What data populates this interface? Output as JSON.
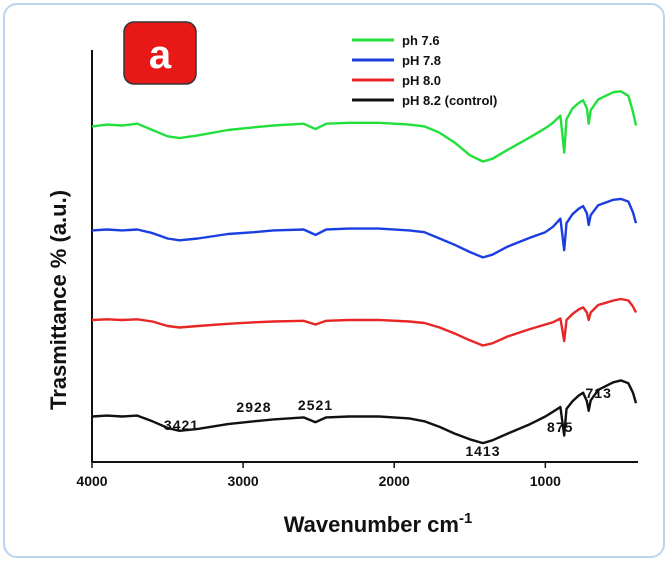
{
  "chart_data": {
    "type": "line",
    "panel_label": "a",
    "xlabel": "Wavenumber cm",
    "xlabel_superscript": "-1",
    "ylabel": "Trasmittance % (a.u.)",
    "xlim": [
      4000,
      400
    ],
    "x_reversed": true,
    "x_ticks": [
      4000,
      3000,
      2000,
      1000
    ],
    "y_ticks_shown": false,
    "grid": false,
    "legend_position": "top-right",
    "series": [
      {
        "name": "ph 7.6",
        "color": "#22e03c",
        "points": [
          [
            4000,
            0.54
          ],
          [
            3900,
            0.56
          ],
          [
            3800,
            0.55
          ],
          [
            3700,
            0.57
          ],
          [
            3600,
            0.5
          ],
          [
            3500,
            0.43
          ],
          [
            3421,
            0.41
          ],
          [
            3300,
            0.44
          ],
          [
            3100,
            0.5
          ],
          [
            2928,
            0.53
          ],
          [
            2800,
            0.55
          ],
          [
            2600,
            0.57
          ],
          [
            2521,
            0.51
          ],
          [
            2450,
            0.57
          ],
          [
            2300,
            0.58
          ],
          [
            2100,
            0.58
          ],
          [
            1900,
            0.56
          ],
          [
            1800,
            0.54
          ],
          [
            1700,
            0.47
          ],
          [
            1600,
            0.36
          ],
          [
            1500,
            0.22
          ],
          [
            1413,
            0.15
          ],
          [
            1350,
            0.18
          ],
          [
            1250,
            0.28
          ],
          [
            1100,
            0.42
          ],
          [
            1000,
            0.52
          ],
          [
            950,
            0.58
          ],
          [
            900,
            0.66
          ],
          [
            875,
            0.25
          ],
          [
            860,
            0.62
          ],
          [
            820,
            0.74
          ],
          [
            780,
            0.8
          ],
          [
            750,
            0.83
          ],
          [
            725,
            0.74
          ],
          [
            713,
            0.57
          ],
          [
            700,
            0.72
          ],
          [
            650,
            0.84
          ],
          [
            600,
            0.88
          ],
          [
            550,
            0.92
          ],
          [
            500,
            0.93
          ],
          [
            450,
            0.88
          ],
          [
            420,
            0.7
          ],
          [
            400,
            0.55
          ]
        ]
      },
      {
        "name": "pH 7.8",
        "color": "#1a3ee0",
        "points": [
          [
            4000,
            0.44
          ],
          [
            3900,
            0.45
          ],
          [
            3800,
            0.44
          ],
          [
            3700,
            0.45
          ],
          [
            3600,
            0.41
          ],
          [
            3500,
            0.35
          ],
          [
            3421,
            0.33
          ],
          [
            3300,
            0.35
          ],
          [
            3100,
            0.4
          ],
          [
            2928,
            0.42
          ],
          [
            2800,
            0.44
          ],
          [
            2600,
            0.45
          ],
          [
            2521,
            0.39
          ],
          [
            2450,
            0.45
          ],
          [
            2300,
            0.46
          ],
          [
            2100,
            0.46
          ],
          [
            1900,
            0.44
          ],
          [
            1800,
            0.42
          ],
          [
            1700,
            0.35
          ],
          [
            1600,
            0.28
          ],
          [
            1500,
            0.2
          ],
          [
            1413,
            0.14
          ],
          [
            1350,
            0.17
          ],
          [
            1250,
            0.26
          ],
          [
            1100,
            0.36
          ],
          [
            1000,
            0.42
          ],
          [
            950,
            0.48
          ],
          [
            900,
            0.57
          ],
          [
            875,
            0.22
          ],
          [
            860,
            0.52
          ],
          [
            820,
            0.62
          ],
          [
            780,
            0.68
          ],
          [
            750,
            0.71
          ],
          [
            725,
            0.63
          ],
          [
            713,
            0.5
          ],
          [
            700,
            0.61
          ],
          [
            650,
            0.72
          ],
          [
            600,
            0.75
          ],
          [
            550,
            0.78
          ],
          [
            500,
            0.79
          ],
          [
            450,
            0.76
          ],
          [
            420,
            0.64
          ],
          [
            400,
            0.52
          ]
        ]
      },
      {
        "name": "pH 8.0",
        "color": "#e82626",
        "points": [
          [
            4000,
            0.4
          ],
          [
            3900,
            0.41
          ],
          [
            3800,
            0.4
          ],
          [
            3700,
            0.41
          ],
          [
            3600,
            0.38
          ],
          [
            3500,
            0.32
          ],
          [
            3421,
            0.3
          ],
          [
            3300,
            0.32
          ],
          [
            3100,
            0.35
          ],
          [
            2928,
            0.37
          ],
          [
            2800,
            0.38
          ],
          [
            2600,
            0.39
          ],
          [
            2521,
            0.34
          ],
          [
            2450,
            0.39
          ],
          [
            2300,
            0.4
          ],
          [
            2100,
            0.4
          ],
          [
            1900,
            0.38
          ],
          [
            1800,
            0.36
          ],
          [
            1700,
            0.3
          ],
          [
            1600,
            0.22
          ],
          [
            1500,
            0.13
          ],
          [
            1413,
            0.06
          ],
          [
            1350,
            0.09
          ],
          [
            1250,
            0.18
          ],
          [
            1100,
            0.28
          ],
          [
            1000,
            0.34
          ],
          [
            950,
            0.37
          ],
          [
            900,
            0.42
          ],
          [
            875,
            0.12
          ],
          [
            860,
            0.4
          ],
          [
            820,
            0.48
          ],
          [
            780,
            0.54
          ],
          [
            750,
            0.57
          ],
          [
            725,
            0.5
          ],
          [
            713,
            0.4
          ],
          [
            700,
            0.5
          ],
          [
            650,
            0.6
          ],
          [
            600,
            0.63
          ],
          [
            550,
            0.66
          ],
          [
            500,
            0.68
          ],
          [
            450,
            0.66
          ],
          [
            420,
            0.58
          ],
          [
            400,
            0.5
          ]
        ]
      },
      {
        "name": "pH 8.2 (control)",
        "color": "#111111",
        "points": [
          [
            4000,
            0.3
          ],
          [
            3900,
            0.31
          ],
          [
            3800,
            0.3
          ],
          [
            3700,
            0.31
          ],
          [
            3600,
            0.25
          ],
          [
            3500,
            0.18
          ],
          [
            3421,
            0.15
          ],
          [
            3300,
            0.17
          ],
          [
            3100,
            0.22
          ],
          [
            2928,
            0.25
          ],
          [
            2800,
            0.27
          ],
          [
            2600,
            0.29
          ],
          [
            2521,
            0.24
          ],
          [
            2450,
            0.29
          ],
          [
            2300,
            0.3
          ],
          [
            2100,
            0.3
          ],
          [
            1900,
            0.28
          ],
          [
            1800,
            0.25
          ],
          [
            1700,
            0.19
          ],
          [
            1600,
            0.12
          ],
          [
            1500,
            0.06
          ],
          [
            1413,
            0.02
          ],
          [
            1350,
            0.05
          ],
          [
            1250,
            0.12
          ],
          [
            1100,
            0.22
          ],
          [
            1000,
            0.3
          ],
          [
            950,
            0.35
          ],
          [
            900,
            0.4
          ],
          [
            875,
            0.1
          ],
          [
            860,
            0.38
          ],
          [
            820,
            0.46
          ],
          [
            780,
            0.52
          ],
          [
            750,
            0.55
          ],
          [
            725,
            0.46
          ],
          [
            713,
            0.36
          ],
          [
            700,
            0.47
          ],
          [
            650,
            0.58
          ],
          [
            600,
            0.62
          ],
          [
            550,
            0.66
          ],
          [
            500,
            0.68
          ],
          [
            450,
            0.65
          ],
          [
            420,
            0.55
          ],
          [
            400,
            0.44
          ]
        ]
      }
    ],
    "annotations": [
      {
        "text": "3421",
        "x": 3421
      },
      {
        "text": "2928",
        "x": 2928
      },
      {
        "text": "2521",
        "x": 2521
      },
      {
        "text": "1413",
        "x": 1413
      },
      {
        "text": "875",
        "x": 875
      },
      {
        "text": "713",
        "x": 713
      }
    ]
  }
}
